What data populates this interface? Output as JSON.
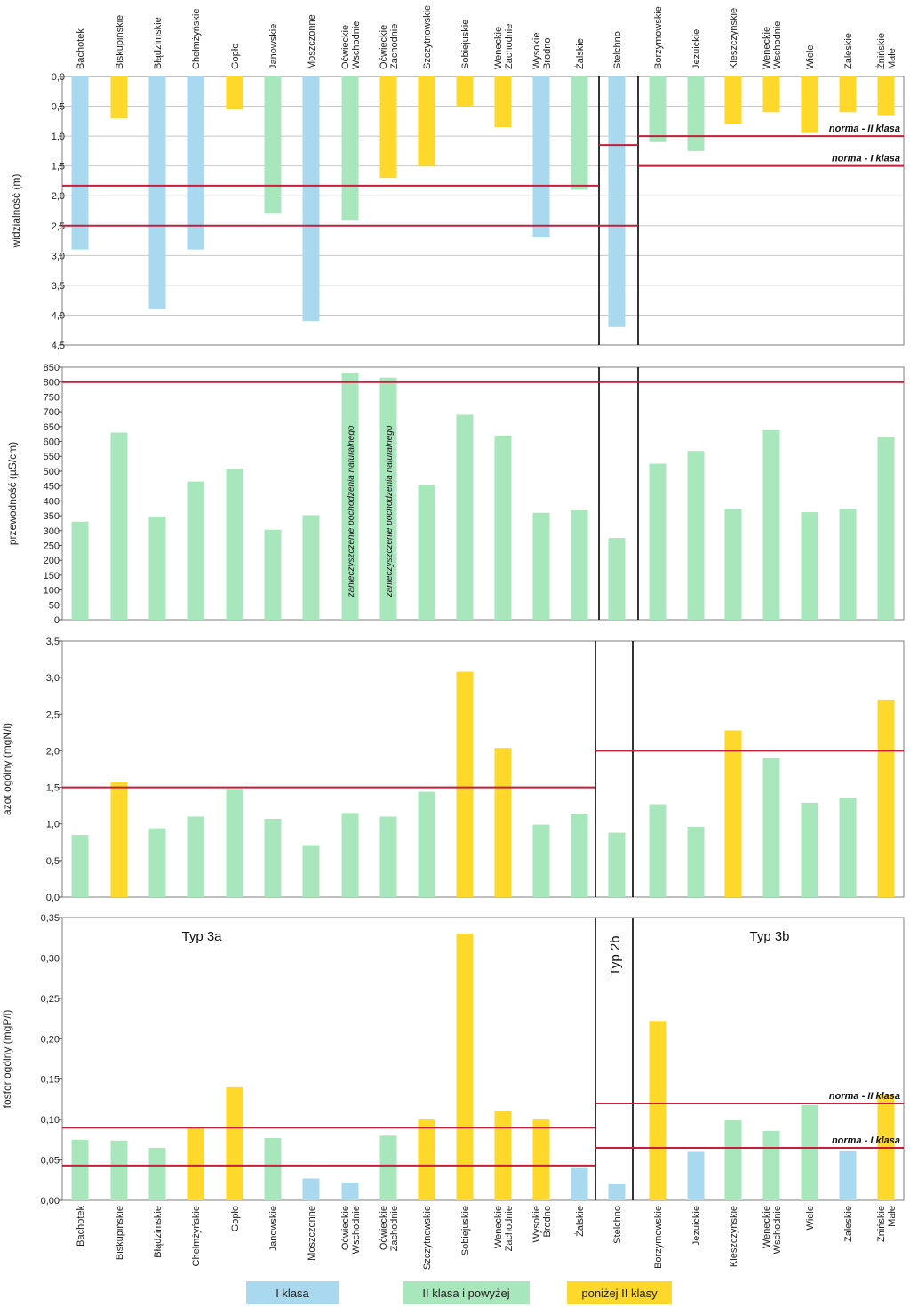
{
  "colors": {
    "blue": "#a9d9ee",
    "green": "#a8e6bb",
    "yellow": "#fed82a",
    "norm_line": "#c41e3a",
    "divider": "#000000",
    "grid": "#c8c8c8",
    "frame": "#7f7f7f"
  },
  "class_codes": {
    "b": "I klasa",
    "g": "II klasa i powyżej",
    "y": "poniżej II klasy"
  },
  "lakes_3a": [
    "Bachotek",
    "Biskupińskie",
    "Błądzimskie",
    "Chełmżyńskie",
    "Gopło",
    "Janowskie",
    "Moszczonne",
    "Oćwieckie Wschodnie",
    "Oćwieckie Zachodnie",
    "Szczytnowskie",
    "Sobiejuskie",
    "Weneckie Zachodnie",
    "Wysokie Brodno",
    "Żalskie"
  ],
  "lakes_2b": [
    "Stelchno"
  ],
  "lakes_3b": [
    "Borzymowskie",
    "Jezuickie",
    "Kleszczyńskie",
    "Weneckie Wschodnie",
    "Wiele",
    "Zaleskie",
    "Żnińskie Małe"
  ],
  "top_labels": [
    [
      "Bachotek"
    ],
    [
      "Biskupińskie"
    ],
    [
      "Błądzimskie"
    ],
    [
      "Chełmżyńskie"
    ],
    [
      "Gopło"
    ],
    [
      "Janowskie"
    ],
    [
      "Moszczonne"
    ],
    [
      "Oćwieckie",
      "Wschodnie"
    ],
    [
      "Oćwieckie",
      "Zachodnie"
    ],
    [
      "Szczytnowskie"
    ],
    [
      "Sobiejuskie"
    ],
    [
      "Weneckie",
      "Zachodnie"
    ],
    [
      "Wysokie",
      "Brodno"
    ],
    [
      "Żalskie"
    ],
    [
      "Stelchno"
    ],
    [
      "Borzymowskie"
    ],
    [
      "Jezuickie"
    ],
    [
      "Kleszczyńskie"
    ],
    [
      "Weneckie",
      "Wschodnie"
    ],
    [
      "Wiele"
    ],
    [
      "Zaleskie"
    ],
    [
      "Żnińskie",
      "Małe"
    ]
  ],
  "bottom_labels": [
    [
      "Bachotek"
    ],
    [
      "Biskupińskie"
    ],
    [
      "Błądzimskie"
    ],
    [
      "Chełmżyńskie"
    ],
    [
      "Gopło"
    ],
    [
      "Janowskie"
    ],
    [
      "Moszczonne"
    ],
    [
      "Oćwieckie",
      "Wschodnie"
    ],
    [
      "Oćwieckie",
      "Zachodnie"
    ],
    [
      "Szczytnowskie"
    ],
    [
      "Sobiejuskie"
    ],
    [
      "Weneckie",
      "Zachodnie"
    ],
    [
      "Wysokie",
      "Brodno"
    ],
    [
      "Żalskie"
    ],
    [
      "Stelchno"
    ],
    [
      "Borzymowskie"
    ],
    [
      "Jezuickie"
    ],
    [
      "Kleszczyńskie"
    ],
    [
      "Weneckie",
      "Wschodnie"
    ],
    [
      "Wiele"
    ],
    [
      "Zaleskie"
    ],
    [
      "Żnińskie",
      "Małe"
    ]
  ],
  "legend": [
    {
      "code": "b",
      "label": "I klasa"
    },
    {
      "code": "g",
      "label": "II klasa i powyżej"
    },
    {
      "code": "y",
      "label": "poniżej II klasy"
    }
  ],
  "chart_data": [
    {
      "type": "bar",
      "ylabel": "widzialność (m)",
      "y_inverted": true,
      "ylim": [
        0,
        4.5
      ],
      "yticks": [
        "0,0",
        "0,5",
        "1,0",
        "1,5",
        "2,0",
        "2,5",
        "3,0",
        "3,5",
        "4,0",
        "4,5"
      ],
      "grid": true,
      "categories": [
        "Bachotek",
        "Biskupińskie",
        "Błądzimskie",
        "Chełmżyńskie",
        "Gopło",
        "Janowskie",
        "Moszczonne",
        "Oćwieckie Wschodnie",
        "Oćwieckie Zachodnie",
        "Szczytnowskie",
        "Sobiejuskie",
        "Weneckie Zachodnie",
        "Wysokie Brodno",
        "Żalskie",
        "Stelchno",
        "Borzymowskie",
        "Jezuickie",
        "Kleszczyńskie",
        "Weneckie Wschodnie",
        "Wiele",
        "Zaleskie",
        "Żnińskie Małe"
      ],
      "values": [
        2.9,
        0.7,
        3.9,
        2.9,
        0.55,
        2.3,
        4.1,
        2.4,
        1.7,
        1.5,
        0.5,
        0.85,
        2.7,
        1.9,
        4.2,
        1.1,
        1.25,
        0.8,
        0.6,
        0.95,
        0.6,
        0.65
      ],
      "classes": [
        "b",
        "y",
        "b",
        "b",
        "y",
        "g",
        "b",
        "g",
        "y",
        "y",
        "y",
        "y",
        "b",
        "g",
        "b",
        "g",
        "g",
        "y",
        "y",
        "y",
        "y",
        "y"
      ],
      "norms": [
        {
          "group": "3a",
          "value": 1.83,
          "label": ""
        },
        {
          "group": "3a",
          "value": 2.5,
          "label": ""
        },
        {
          "group": "2b",
          "value": 1.15,
          "label": ""
        },
        {
          "group": "2b",
          "value": 2.5,
          "label": ""
        },
        {
          "group": "3b",
          "value": 1.0,
          "label": "norma - II klasa"
        },
        {
          "group": "3b",
          "value": 1.5,
          "label": "norma - I klasa"
        }
      ]
    },
    {
      "type": "bar",
      "ylabel": "przewodność (µS/cm)",
      "ylim": [
        0,
        850
      ],
      "yticks": [
        "0",
        "50",
        "100",
        "150",
        "200",
        "250",
        "300",
        "350",
        "400",
        "450",
        "500",
        "550",
        "600",
        "650",
        "700",
        "750",
        "800",
        "850"
      ],
      "grid": false,
      "categories": [
        "Bachotek",
        "Biskupińskie",
        "Błądzimskie",
        "Chełmżyńskie",
        "Gopło",
        "Janowskie",
        "Moszczonne",
        "Oćwieckie Wschodnie",
        "Oćwieckie Zachodnie",
        "Szczytnowskie",
        "Sobiejuskie",
        "Weneckie Zachodnie",
        "Wysokie Brodno",
        "Żalskie",
        "Stelchno",
        "Borzymowskie",
        "Jezuickie",
        "Kleszczyńskie",
        "Weneckie Wschodnie",
        "Wiele",
        "Zaleskie",
        "Żnińskie Małe"
      ],
      "values": [
        330,
        630,
        348,
        465,
        508,
        303,
        352,
        832,
        815,
        455,
        690,
        620,
        360,
        368,
        275,
        525,
        568,
        373,
        638,
        362,
        373,
        615
      ],
      "classes": [
        "g",
        "g",
        "g",
        "g",
        "g",
        "g",
        "g",
        "g",
        "g",
        "g",
        "g",
        "g",
        "g",
        "g",
        "g",
        "g",
        "g",
        "g",
        "g",
        "g",
        "g",
        "g"
      ],
      "annotations": [
        {
          "category": "Oćwieckie Wschodnie",
          "text": "zanieczyszczenie pochodzenia naturalnego"
        },
        {
          "category": "Oćwieckie Zachodnie",
          "text": "zanieczyszczenie pochodzenia naturalnego"
        }
      ],
      "norms": [
        {
          "group": "all",
          "value": 800,
          "label": ""
        }
      ]
    },
    {
      "type": "bar",
      "ylabel": "azot ogólny (mgN/l)",
      "ylim": [
        0,
        3.5
      ],
      "yticks": [
        "0,0",
        "0,5",
        "1,0",
        "1,5",
        "2,0",
        "2,5",
        "3,0",
        "3,5"
      ],
      "grid": false,
      "categories": [
        "Bachotek",
        "Biskupińskie",
        "Błądzimskie",
        "Chełmżyńskie",
        "Gopło",
        "Janowskie",
        "Moszczonne",
        "Oćwieckie Wschodnie",
        "Oćwieckie Zachodnie",
        "Szczytnowskie",
        "Sobiejuskie",
        "Weneckie Zachodnie",
        "Wysokie Brodno",
        "Żalskie",
        "Stelchno",
        "Borzymowskie",
        "Jezuickie",
        "Kleszczyńskie",
        "Weneckie Wschodnie",
        "Wiele",
        "Zaleskie",
        "Żnińskie Małe"
      ],
      "values": [
        0.85,
        1.58,
        0.94,
        1.1,
        1.48,
        1.07,
        0.71,
        1.15,
        1.1,
        1.44,
        3.08,
        2.04,
        0.99,
        1.14,
        0.88,
        1.27,
        0.96,
        2.28,
        1.9,
        1.29,
        1.36,
        2.7
      ],
      "classes": [
        "g",
        "y",
        "g",
        "g",
        "g",
        "g",
        "g",
        "g",
        "g",
        "g",
        "y",
        "y",
        "g",
        "g",
        "g",
        "g",
        "g",
        "y",
        "g",
        "g",
        "g",
        "y"
      ],
      "norms": [
        {
          "group": "3a",
          "value": 1.5,
          "label": ""
        },
        {
          "group": "2b3b",
          "value": 2.0,
          "label": ""
        }
      ]
    },
    {
      "type": "bar",
      "ylabel": "fosfor ogólny (mgP/l)",
      "ylim": [
        0,
        0.35
      ],
      "yticks": [
        "0,00",
        "0,05",
        "0,10",
        "0,15",
        "0,20",
        "0,25",
        "0,30",
        "0,35"
      ],
      "grid": false,
      "categories": [
        "Bachotek",
        "Biskupińskie",
        "Błądzimskie",
        "Chełmżyńskie",
        "Gopło",
        "Janowskie",
        "Moszczonne",
        "Oćwieckie Wschodnie",
        "Oćwieckie Zachodnie",
        "Szczytnowskie",
        "Sobiejuskie",
        "Weneckie Zachodnie",
        "Wysokie Brodno",
        "Żalskie",
        "Stelchno",
        "Borzymowskie",
        "Jezuickie",
        "Kleszczyńskie",
        "Weneckie Wschodnie",
        "Wiele",
        "Zaleskie",
        "Żnińskie Małe"
      ],
      "values": [
        0.075,
        0.074,
        0.065,
        0.09,
        0.14,
        0.077,
        0.027,
        0.022,
        0.08,
        0.1,
        0.33,
        0.11,
        0.1,
        0.04,
        0.02,
        0.222,
        0.06,
        0.099,
        0.086,
        0.118,
        0.061,
        0.13
      ],
      "classes": [
        "g",
        "g",
        "g",
        "y",
        "y",
        "g",
        "b",
        "b",
        "g",
        "y",
        "y",
        "y",
        "y",
        "b",
        "b",
        "y",
        "b",
        "g",
        "g",
        "g",
        "b",
        "y"
      ],
      "group_titles": {
        "3a": "Typ 3a",
        "2b": "Typ 2b",
        "3b": "Typ 3b"
      },
      "norms": [
        {
          "group": "3a",
          "value": 0.09,
          "label": ""
        },
        {
          "group": "3a",
          "value": 0.043,
          "label": ""
        },
        {
          "group": "2b3b",
          "value": 0.12,
          "label": "norma - II klasa"
        },
        {
          "group": "2b3b",
          "value": 0.065,
          "label": "norma - I klasa"
        }
      ]
    }
  ]
}
